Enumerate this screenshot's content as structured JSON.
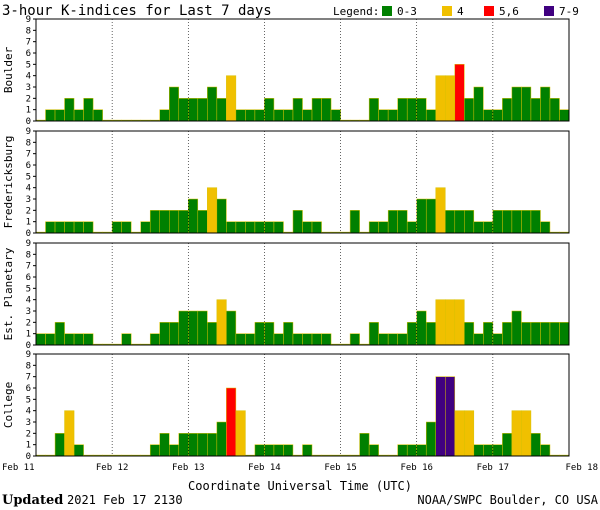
{
  "title": "3-hour K-indices for Last 7 days",
  "legend": {
    "label": "Legend:",
    "items": [
      {
        "label": "0-3",
        "color": "#008000"
      },
      {
        "label": "4",
        "color": "#f0c000"
      },
      {
        "label": "5,6",
        "color": "#ff0000"
      },
      {
        "label": "7-9",
        "color": "#400080"
      }
    ]
  },
  "xlabel": "Coordinate Universal Time (UTC)",
  "footer": {
    "updated_label": "Updated",
    "updated_value": "2021 Feb 17 2130",
    "credit": "NOAA/SWPC Boulder, CO USA"
  },
  "chart_data": {
    "type": "bar",
    "x_ticks": [
      "Feb 11",
      "Feb 12",
      "Feb 13",
      "Feb 14",
      "Feb 15",
      "Feb 16",
      "Feb 17",
      "Feb 18"
    ],
    "y_ticks": [
      0,
      1,
      2,
      3,
      4,
      5,
      6,
      7,
      8,
      9
    ],
    "ylim": [
      0,
      9
    ],
    "intervals_per_day": 8,
    "panels": [
      {
        "name": "Boulder",
        "values": [
          0,
          1,
          1,
          2,
          1,
          2,
          1,
          0,
          0,
          0,
          0,
          0,
          0,
          1,
          3,
          2,
          2,
          2,
          3,
          2,
          4,
          1,
          1,
          1,
          2,
          1,
          1,
          2,
          1,
          2,
          2,
          1,
          0,
          0,
          0,
          2,
          1,
          1,
          2,
          2,
          2,
          1,
          4,
          4,
          5,
          2,
          3,
          1,
          1,
          2,
          3,
          3,
          2,
          3,
          2,
          1,
          0
        ]
      },
      {
        "name": "Fredericksburg",
        "values": [
          0,
          1,
          1,
          1,
          1,
          1,
          0,
          0,
          1,
          1,
          0,
          1,
          2,
          2,
          2,
          2,
          3,
          2,
          4,
          3,
          1,
          1,
          1,
          1,
          1,
          1,
          0,
          2,
          1,
          1,
          0,
          0,
          0,
          2,
          0,
          1,
          1,
          2,
          2,
          1,
          3,
          3,
          4,
          2,
          2,
          2,
          1,
          1,
          2,
          2,
          2,
          2,
          2,
          1,
          0,
          0,
          0
        ]
      },
      {
        "name": "Est. Planetary",
        "values": [
          1,
          1,
          2,
          1,
          1,
          1,
          0,
          0,
          0,
          1,
          0,
          0,
          1,
          2,
          2,
          3,
          3,
          3,
          2,
          4,
          3,
          1,
          1,
          2,
          2,
          1,
          2,
          1,
          1,
          1,
          1,
          0,
          0,
          1,
          0,
          2,
          1,
          1,
          1,
          2,
          3,
          2,
          4,
          4,
          4,
          2,
          1,
          2,
          1,
          2,
          3,
          2,
          2,
          2,
          2,
          2,
          0
        ]
      },
      {
        "name": "College",
        "values": [
          0,
          0,
          2,
          4,
          1,
          0,
          0,
          0,
          0,
          0,
          0,
          0,
          1,
          2,
          1,
          2,
          2,
          2,
          2,
          3,
          6,
          4,
          0,
          1,
          1,
          1,
          1,
          0,
          1,
          0,
          0,
          0,
          0,
          0,
          2,
          1,
          0,
          0,
          1,
          1,
          1,
          3,
          7,
          7,
          4,
          4,
          1,
          1,
          1,
          2,
          4,
          4,
          2,
          1,
          0,
          0,
          0
        ]
      }
    ]
  }
}
